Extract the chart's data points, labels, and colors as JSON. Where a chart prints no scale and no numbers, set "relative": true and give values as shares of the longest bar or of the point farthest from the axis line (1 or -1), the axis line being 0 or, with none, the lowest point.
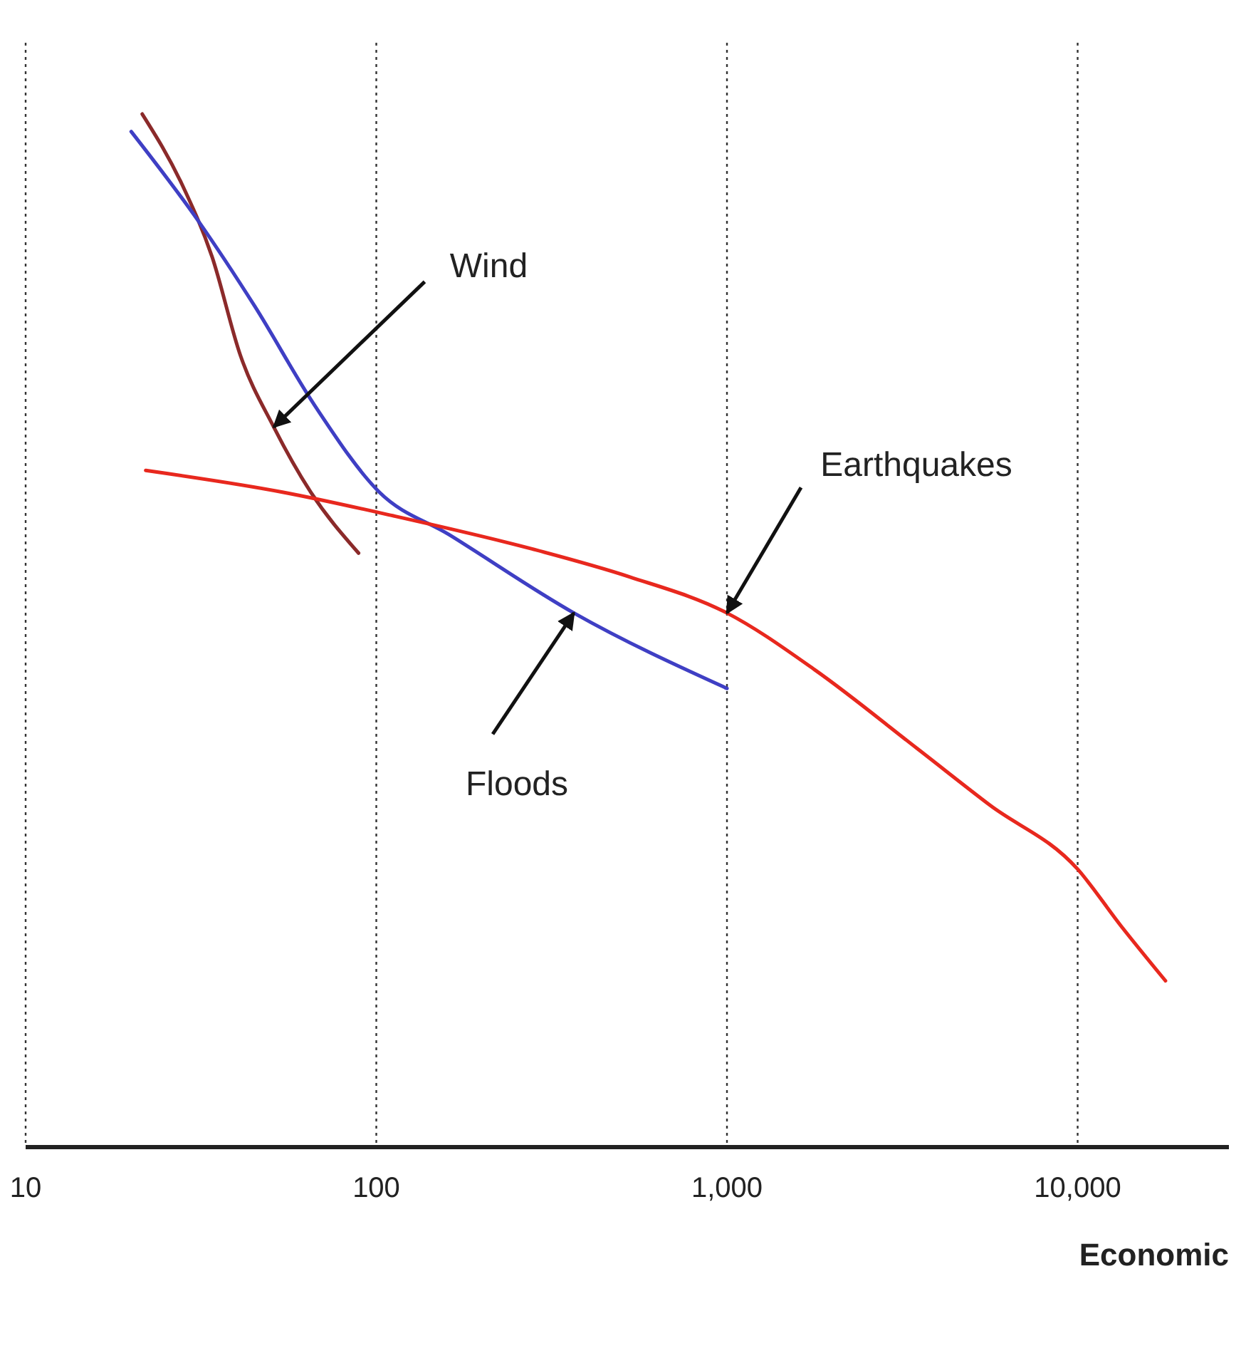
{
  "chart_data": {
    "type": "line",
    "xlabel": "Economic",
    "log": "x",
    "relative": true,
    "grid": "x",
    "marker": "none",
    "line_style": "solid",
    "xlim": [
      10,
      27000
    ],
    "xticks": [
      {
        "value": 10,
        "label": "10"
      },
      {
        "value": 100,
        "label": "100"
      },
      {
        "value": 1000,
        "label": "1,000"
      },
      {
        "value": 10000,
        "label": "10,000"
      }
    ],
    "series": [
      {
        "color": "#8b2a2a",
        "x": [
          21.5,
          28,
          34,
          41,
          51,
          65,
          89
        ],
        "values": [
          1.0,
          0.931,
          0.862,
          0.766,
          0.697,
          0.634,
          0.575
        ]
      },
      {
        "color": "#3f3fc4",
        "x": [
          20,
          31,
          45,
          67,
          102,
          161,
          366,
          1000
        ],
        "values": [
          0.983,
          0.897,
          0.814,
          0.717,
          0.634,
          0.593,
          0.517,
          0.444
        ]
      },
      {
        "color": "#e8281e",
        "x": [
          22,
          54,
          112,
          278,
          527,
          1000,
          1780,
          3480,
          5620,
          10000,
          13300,
          17800
        ],
        "values": [
          0.655,
          0.634,
          0.611,
          0.579,
          0.552,
          0.517,
          0.462,
          0.386,
          0.331,
          0.269,
          0.214,
          0.161
        ]
      }
    ],
    "annotations": [
      {
        "text": "Wind",
        "x": 51,
        "y": 0.697
      },
      {
        "text": "Earthquakes",
        "x": 1000,
        "y": 0.517
      },
      {
        "text": "Floods",
        "x": 366,
        "y": 0.517
      }
    ]
  }
}
